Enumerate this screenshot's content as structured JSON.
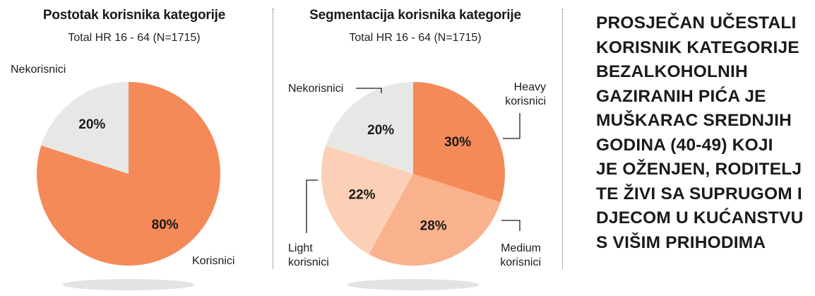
{
  "charts": [
    {
      "title": "Postotak korisnika kategorije",
      "subtitle": "Total HR 16 - 64 (N=1715)",
      "chart_data": {
        "type": "pie",
        "title": "Postotak korisnika kategorije",
        "subtitle": "Total HR 16 - 64 (N=1715)",
        "slices": [
          {
            "label": "Korisnici",
            "value": 80,
            "pct_label": "80%",
            "color": "#f48a58"
          },
          {
            "label": "Nekorisnici",
            "value": 20,
            "pct_label": "20%",
            "color": "#e7e8e6"
          }
        ]
      }
    },
    {
      "title": "Segmentacija korisnika kategorije",
      "subtitle": "Total HR 16 - 64 (N=1715)",
      "chart_data": {
        "type": "pie",
        "title": "Segmentacija korisnika kategorije",
        "subtitle": "Total HR 16 - 64 (N=1715)",
        "slices": [
          {
            "label": "Heavy korisnici",
            "label_lines": [
              "Heavy",
              "korisnici"
            ],
            "value": 30,
            "pct_label": "30%",
            "color": "#f48a58"
          },
          {
            "label": "Medium korisnici",
            "label_lines": [
              "Medium",
              "korisnici"
            ],
            "value": 28,
            "pct_label": "28%",
            "color": "#f9b28d"
          },
          {
            "label": "Light korisnici",
            "label_lines": [
              "Light",
              "korisnici"
            ],
            "value": 22,
            "pct_label": "22%",
            "color": "#fbd0b6"
          },
          {
            "label": "Nekorisnici",
            "label_lines": [
              "Nekorisnici"
            ],
            "value": 20,
            "pct_label": "20%",
            "color": "#e7e8e6"
          }
        ]
      }
    }
  ],
  "summary": {
    "text": "PROSJEČAN UČESTALI\nKORISNIK KATEGORIJE\nBEZALKOHOLNIH\nGAZIRANIH PIĆA JE\nMUŠKARAC SREDNJIH\nGODINA (40-49) KOJI\nJE OŽENJEN, RODITELJ\nTE ŽIVI SA SUPRUGOM I\nDJECOM U KUĆANSTVU\nS VIŠIM PRIHODIMA"
  },
  "colors": {
    "shadow": "#e2e3e2",
    "divider": "#555555"
  }
}
